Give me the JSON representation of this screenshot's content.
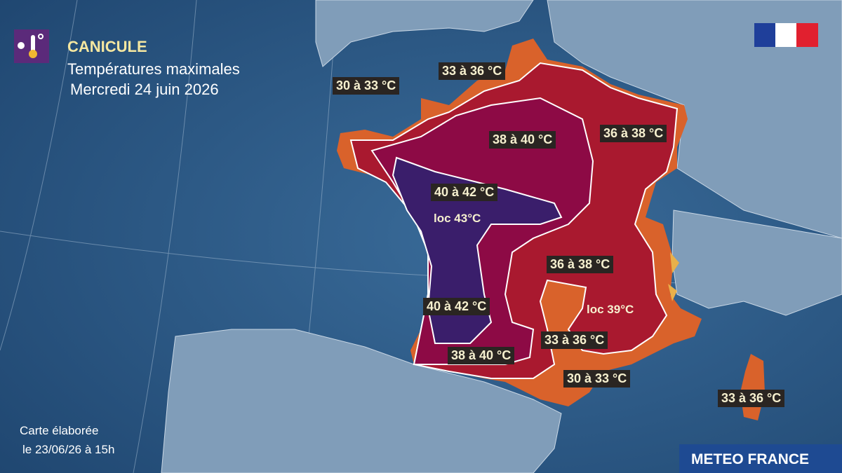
{
  "header": {
    "title": "CANICULE",
    "subtitle": "Températures maximales",
    "date": "Mercredi 24 juin 2026"
  },
  "zones": [
    {
      "label": "30 à 33 °C"
    },
    {
      "label": "33 à 36 °C"
    },
    {
      "label": "38 à 40 °C"
    },
    {
      "label": "36 à 38 °C"
    },
    {
      "label": "40 à 42 °C"
    },
    {
      "label": "loc 43°C"
    },
    {
      "label": "36 à 38 °C"
    },
    {
      "label": "40 à 42 °C"
    },
    {
      "label": "loc 39°C"
    },
    {
      "label": "33 à 36 °C"
    },
    {
      "label": "38 à 40 °C"
    },
    {
      "label": "30 à 33 °C"
    },
    {
      "label": "33 à 36 °C"
    }
  ],
  "footer": {
    "note_line1": "Carte élaborée",
    "note_line2": "le 23/06/26 à 15h",
    "brand": "METEO FRANCE"
  }
}
